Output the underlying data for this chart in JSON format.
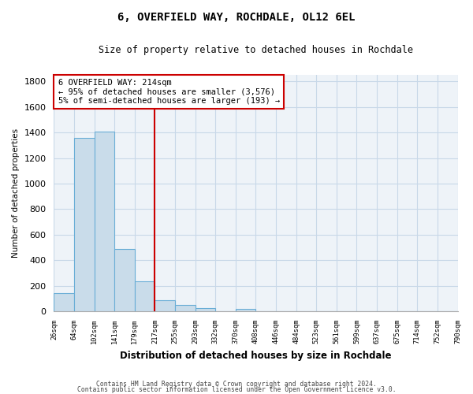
{
  "title": "6, OVERFIELD WAY, ROCHDALE, OL12 6EL",
  "subtitle": "Size of property relative to detached houses in Rochdale",
  "xlabel": "Distribution of detached houses by size in Rochdale",
  "ylabel": "Number of detached properties",
  "bin_labels": [
    "26sqm",
    "64sqm",
    "102sqm",
    "141sqm",
    "179sqm",
    "217sqm",
    "255sqm",
    "293sqm",
    "332sqm",
    "370sqm",
    "408sqm",
    "446sqm",
    "484sqm",
    "523sqm",
    "561sqm",
    "599sqm",
    "637sqm",
    "675sqm",
    "714sqm",
    "752sqm",
    "790sqm"
  ],
  "bar_values": [
    140,
    1355,
    1410,
    490,
    235,
    85,
    50,
    25,
    0,
    20,
    0,
    0,
    0,
    0,
    0,
    0,
    0,
    0,
    0,
    0
  ],
  "bar_color": "#c9dcea",
  "bar_edge_color": "#6aaed6",
  "vline_x": 5,
  "vline_color": "#cc0000",
  "annotation_line1": "6 OVERFIELD WAY: 214sqm",
  "annotation_line2": "← 95% of detached houses are smaller (3,576)",
  "annotation_line3": "5% of semi-detached houses are larger (193) →",
  "annotation_box_color": "#cc0000",
  "ylim": [
    0,
    1850
  ],
  "yticks": [
    0,
    200,
    400,
    600,
    800,
    1000,
    1200,
    1400,
    1600,
    1800
  ],
  "footer_line1": "Contains HM Land Registry data © Crown copyright and database right 2024.",
  "footer_line2": "Contains public sector information licensed under the Open Government Licence v3.0.",
  "background_color": "#ffffff",
  "grid_color": "#c8d8e8",
  "title_fontsize": 10,
  "subtitle_fontsize": 8.5
}
